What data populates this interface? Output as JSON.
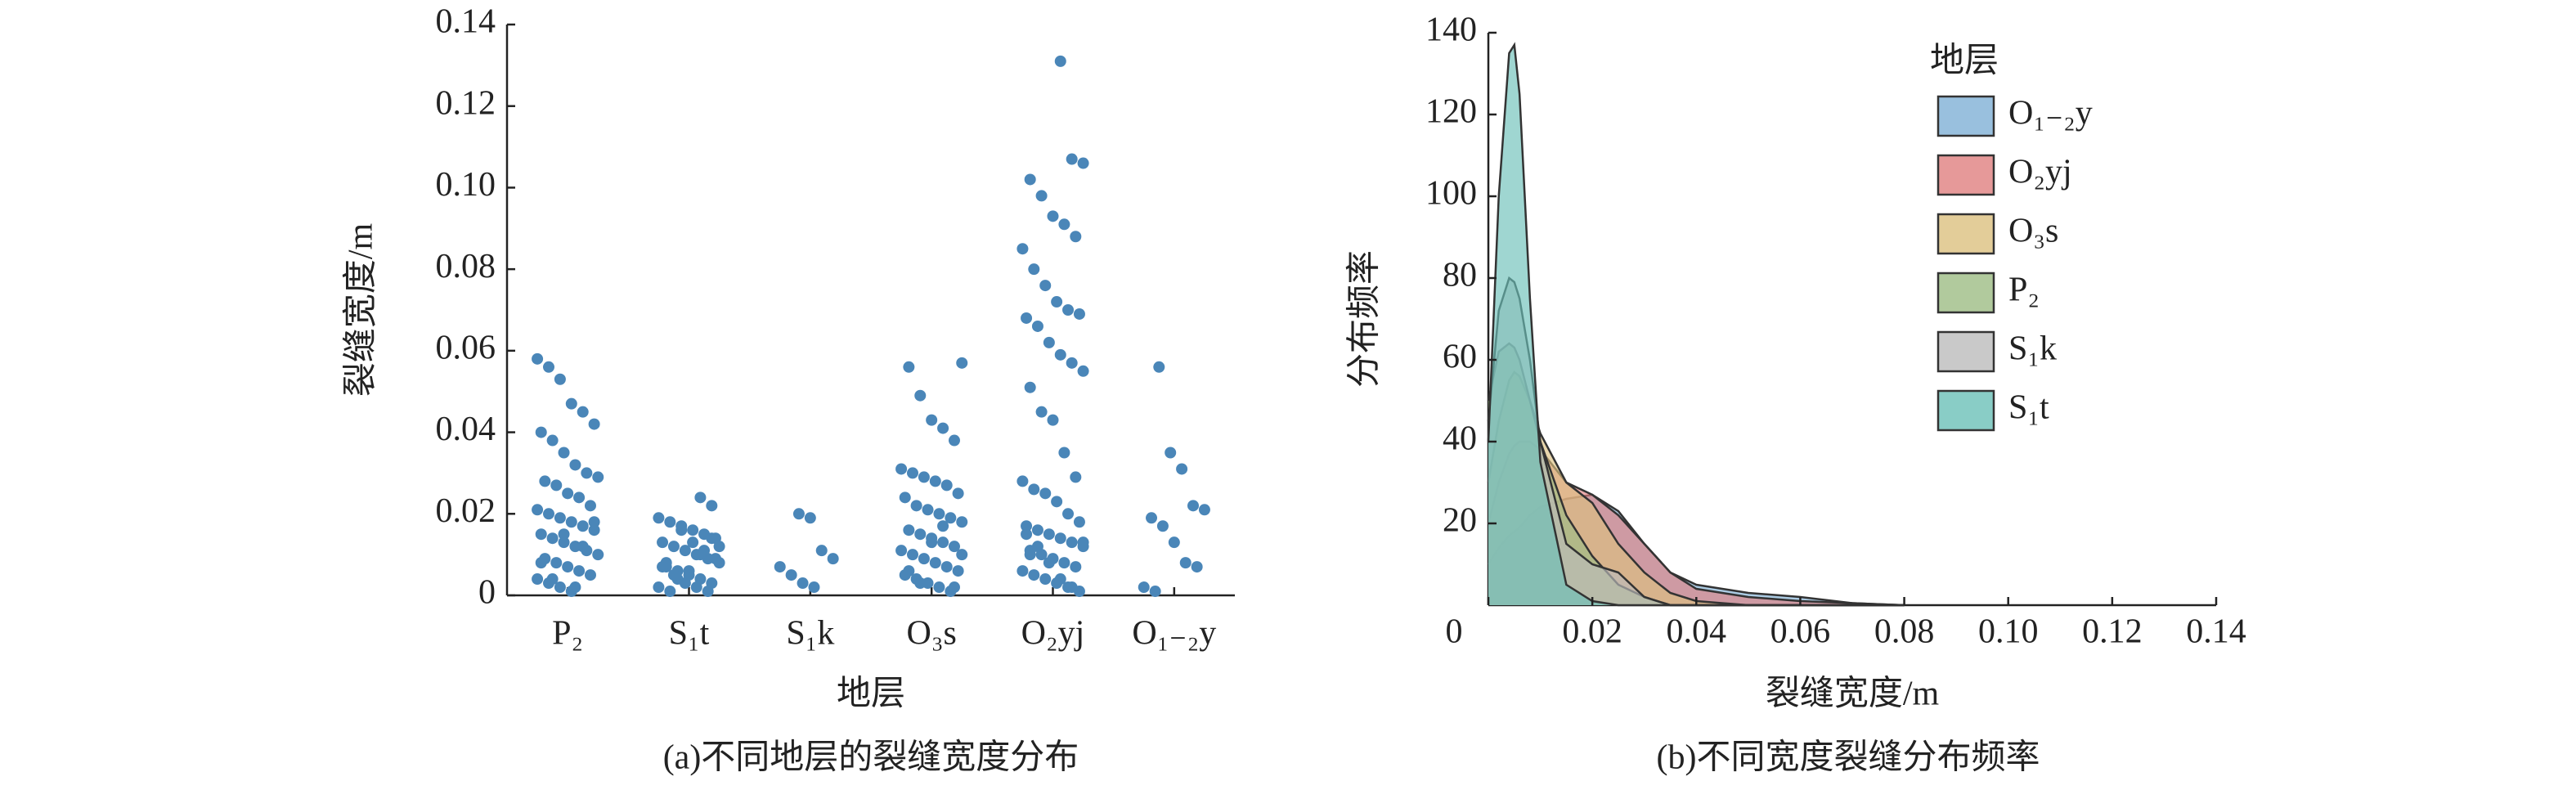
{
  "chart_data": [
    {
      "type": "strip",
      "caption": "(a)不同地层的裂缝宽度分布",
      "xlabel": "地层",
      "ylabel": "裂缝宽度/m",
      "color": "#4a86b8",
      "categories": [
        "P₂",
        "S₁t",
        "S₁k",
        "O₃s",
        "O₂yj",
        "O₁₋₂y"
      ],
      "values": [
        [
          0.058,
          0.056,
          0.053,
          0.047,
          0.045,
          0.042,
          0.04,
          0.038,
          0.035,
          0.032,
          0.03,
          0.029,
          0.028,
          0.027,
          0.025,
          0.024,
          0.022,
          0.021,
          0.02,
          0.019,
          0.018,
          0.017,
          0.016,
          0.015,
          0.014,
          0.013,
          0.012,
          0.011,
          0.01,
          0.009,
          0.008,
          0.007,
          0.006,
          0.005,
          0.004,
          0.003,
          0.002,
          0.001,
          0.012,
          0.018,
          0.008,
          0.004,
          0.015,
          0.002
        ],
        [
          0.024,
          0.022,
          0.019,
          0.018,
          0.017,
          0.016,
          0.015,
          0.014,
          0.013,
          0.012,
          0.011,
          0.01,
          0.009,
          0.008,
          0.007,
          0.006,
          0.005,
          0.004,
          0.003,
          0.002,
          0.001,
          0.016,
          0.013,
          0.011,
          0.009,
          0.007,
          0.005,
          0.003,
          0.002,
          0.001,
          0.012,
          0.008,
          0.004,
          0.006,
          0.01,
          0.014
        ],
        [
          0.02,
          0.019,
          0.011,
          0.009,
          0.007,
          0.005,
          0.003,
          0.002
        ],
        [
          0.057,
          0.056,
          0.049,
          0.043,
          0.041,
          0.038,
          0.031,
          0.03,
          0.029,
          0.028,
          0.027,
          0.025,
          0.024,
          0.022,
          0.021,
          0.02,
          0.019,
          0.018,
          0.016,
          0.015,
          0.014,
          0.013,
          0.012,
          0.011,
          0.01,
          0.009,
          0.008,
          0.007,
          0.006,
          0.005,
          0.004,
          0.003,
          0.002,
          0.001,
          0.01,
          0.006,
          0.003,
          0.013,
          0.017,
          0.002
        ],
        [
          0.131,
          0.107,
          0.106,
          0.102,
          0.098,
          0.093,
          0.091,
          0.088,
          0.085,
          0.08,
          0.076,
          0.072,
          0.07,
          0.069,
          0.068,
          0.066,
          0.062,
          0.059,
          0.057,
          0.055,
          0.051,
          0.045,
          0.043,
          0.035,
          0.029,
          0.028,
          0.026,
          0.025,
          0.023,
          0.02,
          0.018,
          0.017,
          0.016,
          0.015,
          0.014,
          0.013,
          0.012,
          0.011,
          0.01,
          0.009,
          0.008,
          0.007,
          0.006,
          0.005,
          0.004,
          0.003,
          0.002,
          0.001,
          0.015,
          0.012,
          0.008,
          0.004,
          0.002,
          0.013,
          0.01
        ],
        [
          0.056,
          0.035,
          0.031,
          0.022,
          0.021,
          0.019,
          0.017,
          0.013,
          0.008,
          0.007,
          0.002,
          0.001
        ]
      ],
      "ylim": [
        0,
        0.14
      ],
      "yticks": [
        0,
        0.02,
        0.04,
        0.06,
        0.08,
        {
          "value": 0.1,
          "label": "0.10"
        },
        0.12,
        0.14
      ]
    },
    {
      "type": "area",
      "caption": "(b)不同宽度裂缝分布频率",
      "xlabel": "裂缝宽度/m",
      "ylabel": "分布频率",
      "legend_title": "地层",
      "x": [
        0,
        0.002,
        0.004,
        0.005,
        0.006,
        0.008,
        0.01,
        0.015,
        0.02,
        0.025,
        0.03,
        0.035,
        0.04,
        0.05,
        0.06,
        0.07,
        0.08
      ],
      "series": [
        {
          "name": "O₁₋₂y",
          "color": "#7fb0d6",
          "values": [
            10,
            14,
            17,
            18,
            19,
            22,
            24,
            26,
            27,
            23,
            15,
            8,
            5,
            3,
            2,
            0.5,
            0
          ]
        },
        {
          "name": "O₂yj",
          "color": "#e08080",
          "values": [
            20,
            30,
            37,
            39,
            40,
            40,
            38,
            30,
            27,
            22,
            15,
            8,
            4,
            2,
            1,
            0.5,
            0
          ]
        },
        {
          "name": "O₃s",
          "color": "#dcc080",
          "values": [
            30,
            45,
            55,
            57,
            56,
            50,
            42,
            30,
            25,
            15,
            8,
            3,
            1,
            0,
            0,
            0,
            0
          ]
        },
        {
          "name": "P₂",
          "color": "#9dbd85",
          "values": [
            50,
            62,
            64,
            63,
            60,
            50,
            40,
            22,
            12,
            5,
            2,
            0,
            0,
            0,
            0,
            0,
            0
          ]
        },
        {
          "name": "S₁k",
          "color": "#bbbbbb",
          "values": [
            45,
            72,
            80,
            79,
            75,
            60,
            40,
            15,
            10,
            8,
            2,
            0,
            0,
            0,
            0,
            0,
            0
          ]
        },
        {
          "name": "S₁t",
          "color": "#6cc0b8",
          "values": [
            40,
            100,
            135,
            137,
            125,
            75,
            35,
            5,
            1,
            0,
            0,
            0,
            0,
            0,
            0,
            0,
            0
          ]
        }
      ],
      "xlim": [
        0,
        0.14
      ],
      "xticks": [
        0,
        0.02,
        0.04,
        0.06,
        0.08,
        {
          "value": 0.1,
          "label": "0.10"
        },
        0.12,
        0.14
      ],
      "ylim": [
        0,
        140
      ],
      "yticks": [
        20,
        40,
        60,
        80,
        100,
        120,
        140
      ]
    }
  ]
}
